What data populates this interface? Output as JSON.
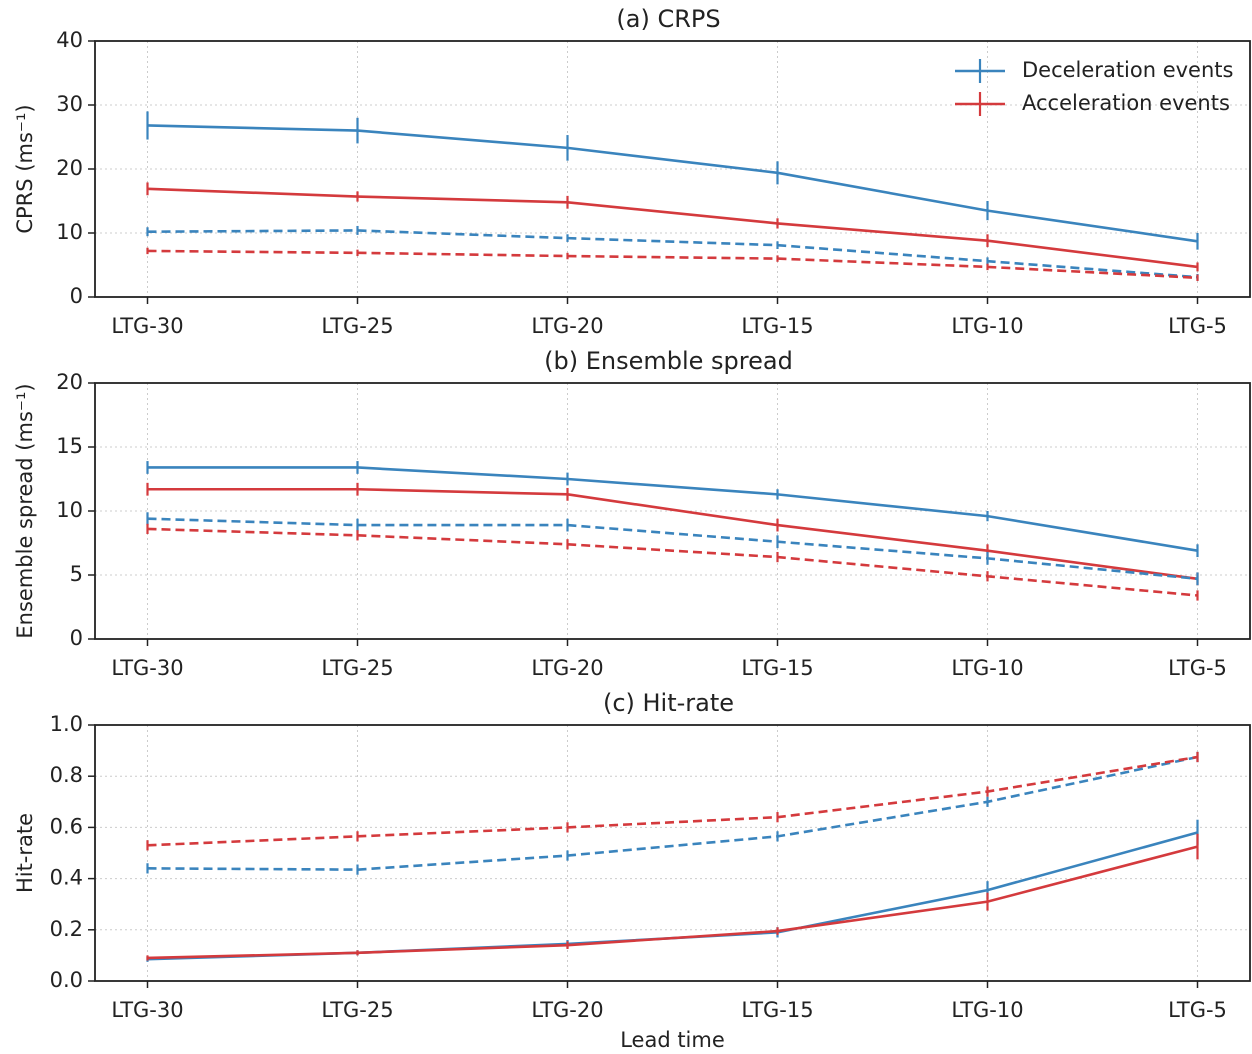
{
  "chart_data": [
    {
      "type": "line",
      "title": "(a) CRPS",
      "ylabel": "CPRS (ms⁻¹)",
      "categories": [
        "LTG-30",
        "LTG-25",
        "LTG-20",
        "LTG-15",
        "LTG-10",
        "LTG-5"
      ],
      "ylim": [
        0,
        40
      ],
      "yticks": [
        0,
        10,
        20,
        30,
        40
      ],
      "grid": true,
      "legend": "upper right",
      "series": [
        {
          "name": "Deceleration events",
          "color": "#3a84bd",
          "dash": false,
          "values": [
            26.8,
            26.0,
            23.3,
            19.4,
            13.5,
            8.7
          ],
          "errors": [
            2.2,
            2.0,
            2.0,
            1.8,
            1.5,
            1.3
          ]
        },
        {
          "name": "Acceleration events",
          "color": "#d43a3d",
          "dash": false,
          "values": [
            16.9,
            15.7,
            14.8,
            11.5,
            8.8,
            4.7
          ],
          "errors": [
            1.0,
            0.8,
            1.0,
            0.8,
            1.0,
            0.7
          ]
        },
        {
          "color": "#3a84bd",
          "dash": true,
          "values": [
            10.2,
            10.4,
            9.2,
            8.1,
            5.6,
            3.1
          ],
          "errors": [
            0.7,
            0.7,
            0.6,
            0.6,
            0.6,
            0.5
          ]
        },
        {
          "color": "#d43a3d",
          "dash": true,
          "values": [
            7.2,
            6.9,
            6.4,
            6.0,
            4.7,
            3.0
          ],
          "errors": [
            0.5,
            0.5,
            0.5,
            0.5,
            0.5,
            0.5
          ]
        }
      ]
    },
    {
      "type": "line",
      "title": "(b) Ensemble spread",
      "ylabel": "Ensemble spread (ms⁻¹)",
      "categories": [
        "LTG-30",
        "LTG-25",
        "LTG-20",
        "LTG-15",
        "LTG-10",
        "LTG-5"
      ],
      "ylim": [
        0,
        20
      ],
      "yticks": [
        0,
        5,
        10,
        15,
        20
      ],
      "grid": true,
      "series": [
        {
          "color": "#3a84bd",
          "dash": false,
          "values": [
            13.4,
            13.4,
            12.5,
            11.3,
            9.6,
            6.9
          ],
          "errors": [
            0.5,
            0.5,
            0.5,
            0.4,
            0.4,
            0.5
          ]
        },
        {
          "color": "#d43a3d",
          "dash": false,
          "values": [
            11.7,
            11.7,
            11.3,
            8.9,
            6.9,
            4.7
          ],
          "errors": [
            0.5,
            0.5,
            0.5,
            0.5,
            0.5,
            0.5
          ]
        },
        {
          "color": "#3a84bd",
          "dash": true,
          "values": [
            9.4,
            8.9,
            8.9,
            7.6,
            6.3,
            4.7
          ],
          "errors": [
            0.5,
            0.5,
            0.5,
            0.5,
            0.5,
            0.5
          ]
        },
        {
          "color": "#d43a3d",
          "dash": true,
          "values": [
            8.6,
            8.1,
            7.4,
            6.4,
            4.9,
            3.4
          ],
          "errors": [
            0.4,
            0.4,
            0.4,
            0.4,
            0.4,
            0.4
          ]
        }
      ]
    },
    {
      "type": "line",
      "title": "(c) Hit-rate",
      "ylabel": "Hit-rate",
      "xlabel": "Lead time",
      "categories": [
        "LTG-30",
        "LTG-25",
        "LTG-20",
        "LTG-15",
        "LTG-10",
        "LTG-5"
      ],
      "ylim": [
        0,
        1
      ],
      "yticks": [
        {
          "value": 0,
          "label": "0.0"
        },
        0.2,
        0.4,
        0.6,
        0.8,
        {
          "value": 1,
          "label": "1.0"
        }
      ],
      "grid": true,
      "series": [
        {
          "color": "#3a84bd",
          "dash": false,
          "values": [
            0.085,
            0.11,
            0.145,
            0.19,
            0.355,
            0.58
          ],
          "errors": [
            0.01,
            0.01,
            0.015,
            0.02,
            0.035,
            0.05
          ]
        },
        {
          "color": "#d43a3d",
          "dash": false,
          "values": [
            0.09,
            0.11,
            0.14,
            0.195,
            0.31,
            0.525
          ],
          "errors": [
            0.01,
            0.01,
            0.015,
            0.015,
            0.035,
            0.05
          ]
        },
        {
          "color": "#3a84bd",
          "dash": true,
          "values": [
            0.44,
            0.435,
            0.49,
            0.565,
            0.7,
            0.875
          ],
          "errors": [
            0.02,
            0.02,
            0.02,
            0.02,
            0.02,
            0.02
          ]
        },
        {
          "color": "#d43a3d",
          "dash": true,
          "values": [
            0.53,
            0.565,
            0.6,
            0.64,
            0.74,
            0.875
          ],
          "errors": [
            0.02,
            0.02,
            0.02,
            0.02,
            0.02,
            0.02
          ]
        }
      ]
    }
  ]
}
